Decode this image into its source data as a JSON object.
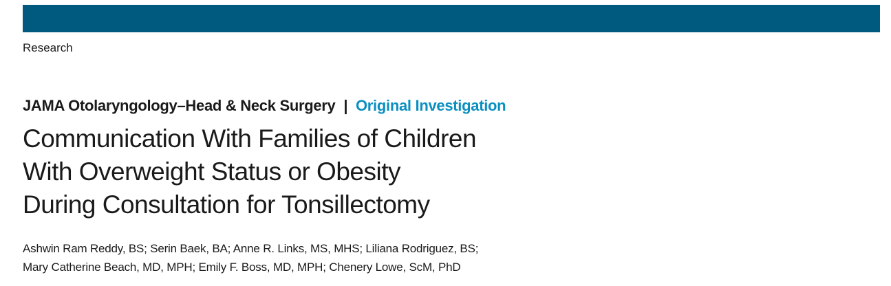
{
  "header": {
    "bar_color": "#005a80",
    "section_label": "Research"
  },
  "journal": {
    "name": "JAMA Otolaryngology–Head & Neck Surgery",
    "separator": "|",
    "article_type": "Original Investigation",
    "article_type_color": "#0a8fc0"
  },
  "article": {
    "title_lines": [
      "Communication With Families of Children",
      "With Overweight Status or Obesity",
      "During Consultation for Tonsillectomy"
    ],
    "author_lines": [
      "Ashwin Ram Reddy, BS; Serin Baek, BA; Anne R. Links, MS, MHS; Liliana Rodriguez, BS;",
      "Mary Catherine Beach, MD, MPH; Emily F. Boss, MD, MPH; Chenery Lowe, ScM, PhD"
    ]
  }
}
